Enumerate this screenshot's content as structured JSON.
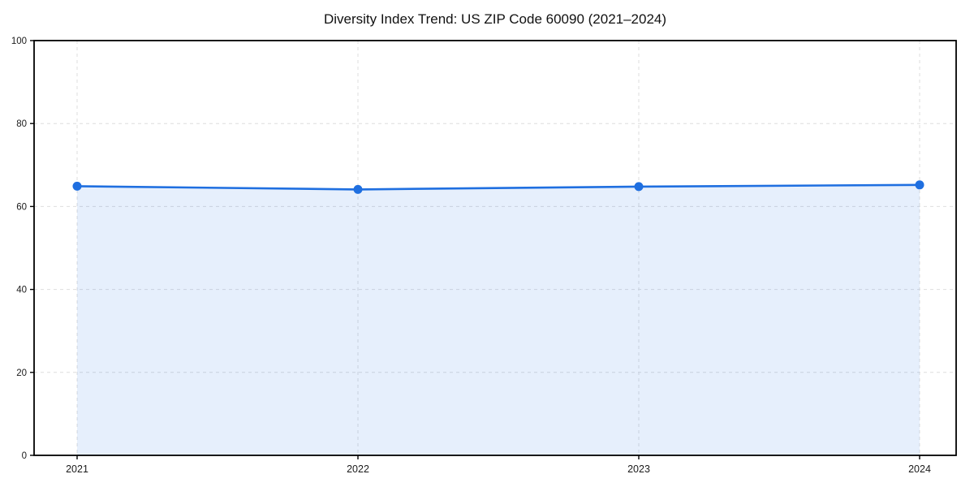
{
  "chart_data": {
    "type": "line",
    "title": "Diversity Index Trend: US ZIP Code 60090 (2021–2024)",
    "categories": [
      "2021",
      "2022",
      "2023",
      "2024"
    ],
    "series": [
      {
        "name": "Diversity Index",
        "values": [
          64.9,
          64.1,
          64.8,
          65.2
        ]
      }
    ],
    "xlabel": "",
    "ylabel": "",
    "ylim": [
      0,
      100
    ],
    "yticks": [
      0,
      20,
      40,
      60,
      80,
      100
    ],
    "grid": "dashed, both axes",
    "legend": "none",
    "area_fill": true,
    "marker": "circle",
    "colors": {
      "line": "#1f6fe0",
      "marker": "#1f6fe0",
      "fill": "#1f6fe0",
      "fill_opacity": 0.11,
      "grid": "#dedede",
      "spine": "#000000",
      "background": "#ffffff",
      "text": "#111111"
    }
  }
}
